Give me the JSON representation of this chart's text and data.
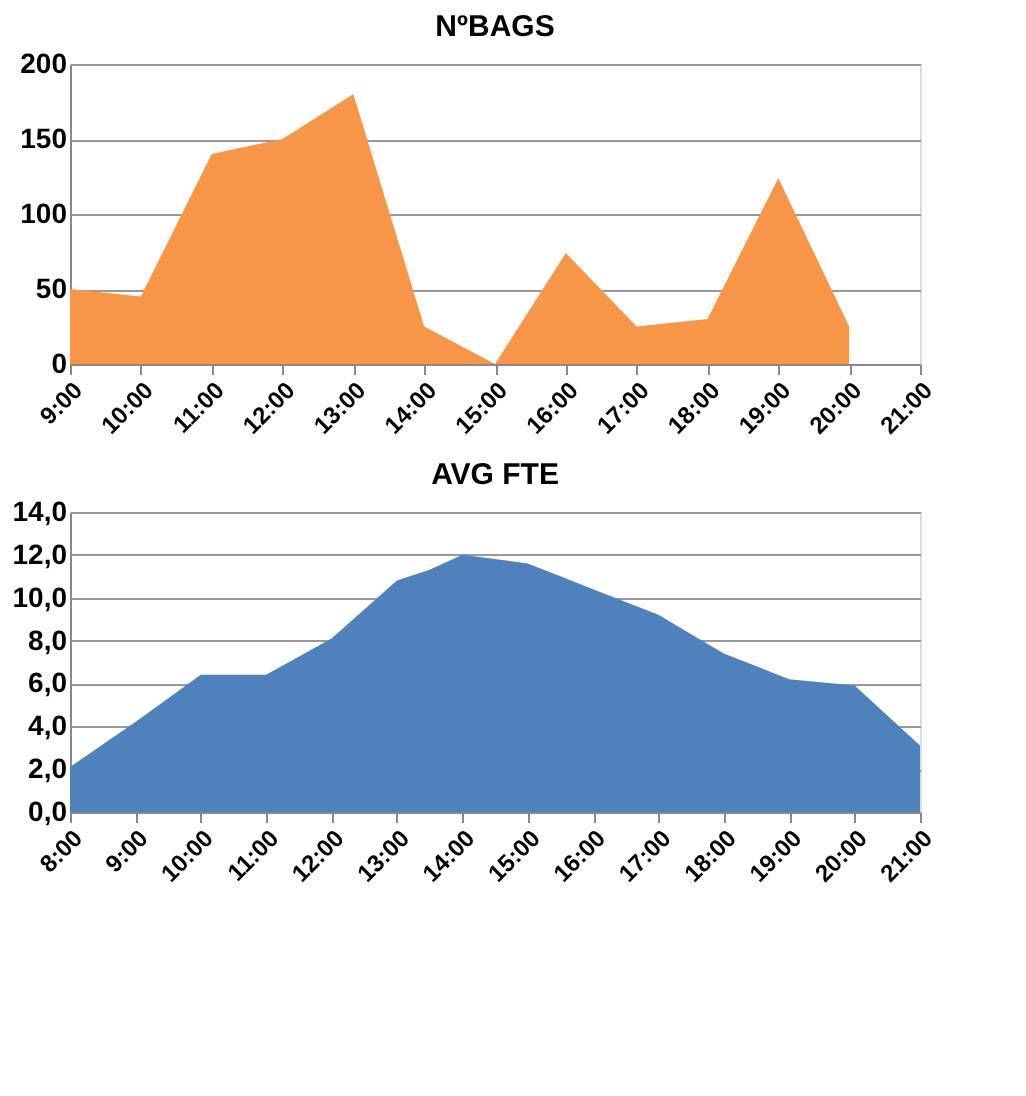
{
  "chart_data": [
    {
      "type": "area",
      "title": "NºBAGS",
      "color": "#f79646",
      "grid": "y",
      "x": [
        9,
        10,
        11,
        12,
        13,
        14,
        15,
        16,
        17,
        18,
        19,
        20
      ],
      "values": [
        50,
        45,
        140,
        150,
        180,
        25,
        0,
        74,
        25,
        30,
        124,
        25
      ],
      "xlim": [
        9,
        21
      ],
      "xticks": [
        {
          "value": 9,
          "label": "9:00"
        },
        {
          "value": 10,
          "label": "10:00"
        },
        {
          "value": 11,
          "label": "11:00"
        },
        {
          "value": 12,
          "label": "12:00"
        },
        {
          "value": 13,
          "label": "13:00"
        },
        {
          "value": 14,
          "label": "14:00"
        },
        {
          "value": 15,
          "label": "15:00"
        },
        {
          "value": 16,
          "label": "16:00"
        },
        {
          "value": 17,
          "label": "17:00"
        },
        {
          "value": 18,
          "label": "18:00"
        },
        {
          "value": 19,
          "label": "19:00"
        },
        {
          "value": 20,
          "label": "20:00"
        },
        {
          "value": 21,
          "label": "21:00"
        }
      ],
      "ylim": [
        0,
        200
      ],
      "yticks": [
        0,
        50,
        100,
        150,
        200
      ]
    },
    {
      "type": "area",
      "title": "AVG FTE",
      "color": "#4f81bd",
      "grid": "y",
      "x": [
        8,
        9,
        10,
        11,
        12,
        13,
        13.5,
        14,
        15,
        15.5,
        16,
        16.5,
        17,
        17.5,
        18,
        18.5,
        19,
        20,
        21
      ],
      "values": [
        2.1,
        4.2,
        6.4,
        6.4,
        8.1,
        10.8,
        11.3,
        12.0,
        11.6,
        11.0,
        10.4,
        9.8,
        9.2,
        8.3,
        7.4,
        6.8,
        6.2,
        5.9,
        3.1
      ],
      "xlim": [
        8,
        21
      ],
      "xticks": [
        {
          "value": 8,
          "label": "8:00"
        },
        {
          "value": 9,
          "label": "9:00"
        },
        {
          "value": 10,
          "label": "10:00"
        },
        {
          "value": 11,
          "label": "11:00"
        },
        {
          "value": 12,
          "label": "12:00"
        },
        {
          "value": 13,
          "label": "13:00"
        },
        {
          "value": 14,
          "label": "14:00"
        },
        {
          "value": 15,
          "label": "15:00"
        },
        {
          "value": 16,
          "label": "16:00"
        },
        {
          "value": 17,
          "label": "17:00"
        },
        {
          "value": 18,
          "label": "18:00"
        },
        {
          "value": 19,
          "label": "19:00"
        },
        {
          "value": 20,
          "label": "20:00"
        },
        {
          "value": 21,
          "label": "21:00"
        }
      ],
      "ylim": [
        0,
        14
      ],
      "yticks": [
        {
          "value": 0,
          "label": "0,0"
        },
        {
          "value": 2,
          "label": "2,0"
        },
        {
          "value": 4,
          "label": "4,0"
        },
        {
          "value": 6,
          "label": "6,0"
        },
        {
          "value": 8,
          "label": "8,0"
        },
        {
          "value": 10,
          "label": "10,0"
        },
        {
          "value": 12,
          "label": "12,0"
        },
        {
          "value": 14,
          "label": "14,0"
        }
      ]
    }
  ]
}
